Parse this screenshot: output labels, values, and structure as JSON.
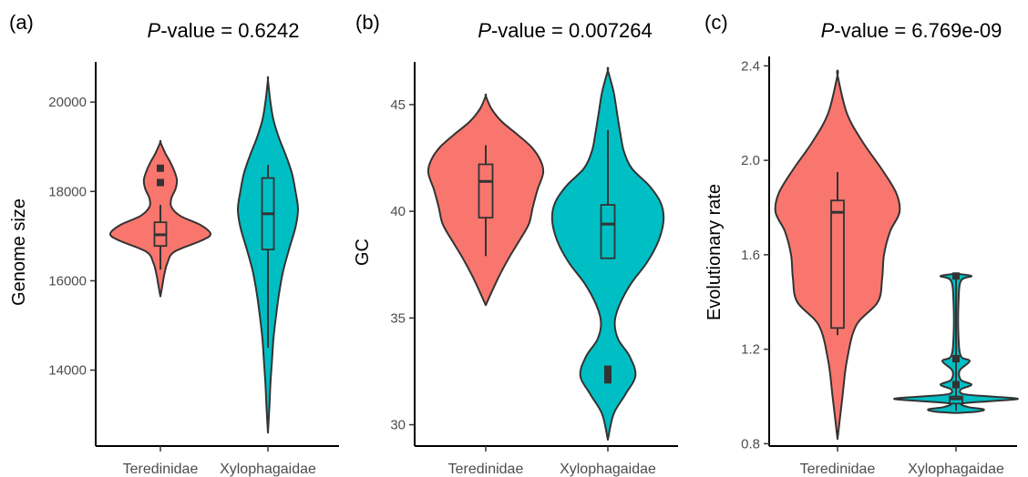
{
  "colors": {
    "teredinidae": "#F8766D",
    "xylophagaidae": "#00BFC4",
    "outline": "#333333"
  },
  "chart_data": [
    {
      "type": "violin",
      "panel_label": "(a)",
      "title_italic": "P",
      "title_rest": "-value = 0.6242",
      "ylabel": "Genome size",
      "ylim": [
        12300,
        20900
      ],
      "yticks": [
        14000,
        16000,
        18000,
        20000
      ],
      "ytick_labels": [
        "14000",
        "16000",
        "18000",
        "20000"
      ],
      "categories": [
        "Teredinidae",
        "Xylophagaidae"
      ],
      "groups": [
        {
          "name": "Teredinidae",
          "color": "#F8766D",
          "violin": [
            [
              15650,
              0.0
            ],
            [
              15900,
              0.04
            ],
            [
              16150,
              0.08
            ],
            [
              16400,
              0.14
            ],
            [
              16650,
              0.28
            ],
            [
              16900,
              0.82
            ],
            [
              17050,
              1.0
            ],
            [
              17250,
              0.8
            ],
            [
              17450,
              0.4
            ],
            [
              17650,
              0.22
            ],
            [
              17850,
              0.22
            ],
            [
              18050,
              0.3
            ],
            [
              18250,
              0.33
            ],
            [
              18450,
              0.28
            ],
            [
              18650,
              0.2
            ],
            [
              18850,
              0.1
            ],
            [
              19100,
              0.0
            ]
          ],
          "box": {
            "q1": 16780,
            "median": 17030,
            "q3": 17310,
            "wlo": 16250,
            "whi": 17700
          },
          "outliers": [
            18200,
            18520
          ]
        },
        {
          "name": "Xylophagaidae",
          "color": "#00BFC4",
          "violin": [
            [
              12600,
              0.0
            ],
            [
              13200,
              0.03
            ],
            [
              13700,
              0.05
            ],
            [
              14200,
              0.08
            ],
            [
              14700,
              0.11
            ],
            [
              15200,
              0.16
            ],
            [
              15700,
              0.22
            ],
            [
              16200,
              0.3
            ],
            [
              16700,
              0.42
            ],
            [
              17200,
              0.55
            ],
            [
              17600,
              0.6
            ],
            [
              18000,
              0.55
            ],
            [
              18400,
              0.48
            ],
            [
              18800,
              0.36
            ],
            [
              19200,
              0.22
            ],
            [
              19600,
              0.11
            ],
            [
              20000,
              0.05
            ],
            [
              20500,
              0.0
            ]
          ],
          "box": {
            "q1": 16700,
            "median": 17500,
            "q3": 18300,
            "wlo": 14500,
            "whi": 18600
          },
          "outliers": []
        }
      ]
    },
    {
      "type": "violin",
      "panel_label": "(b)",
      "title_italic": "P",
      "title_rest": "-value = 0.007264",
      "ylabel": "GC",
      "ylim": [
        29,
        47
      ],
      "yticks": [
        30,
        35,
        40,
        45
      ],
      "ytick_labels": [
        "30",
        "35",
        "40",
        "45"
      ],
      "categories": [
        "Teredinidae",
        "Xylophagaidae"
      ],
      "groups": [
        {
          "name": "Teredinidae",
          "color": "#F8766D",
          "violin": [
            [
              35.6,
              0.0
            ],
            [
              36.2,
              0.1
            ],
            [
              37.0,
              0.24
            ],
            [
              37.8,
              0.4
            ],
            [
              38.6,
              0.58
            ],
            [
              39.4,
              0.75
            ],
            [
              40.2,
              0.82
            ],
            [
              41.0,
              0.9
            ],
            [
              41.8,
              1.0
            ],
            [
              42.4,
              0.95
            ],
            [
              43.0,
              0.8
            ],
            [
              43.6,
              0.55
            ],
            [
              44.2,
              0.28
            ],
            [
              44.8,
              0.1
            ],
            [
              45.4,
              0.0
            ]
          ],
          "box": {
            "q1": 39.7,
            "median": 41.4,
            "q3": 42.2,
            "wlo": 37.9,
            "whi": 43.1
          },
          "outliers": []
        },
        {
          "name": "Xylophagaidae",
          "color": "#00BFC4",
          "violin": [
            [
              29.3,
              0.0
            ],
            [
              30.5,
              0.1
            ],
            [
              31.4,
              0.3
            ],
            [
              32.3,
              0.48
            ],
            [
              33.2,
              0.38
            ],
            [
              34.0,
              0.18
            ],
            [
              34.8,
              0.12
            ],
            [
              35.6,
              0.2
            ],
            [
              36.6,
              0.4
            ],
            [
              37.6,
              0.68
            ],
            [
              38.6,
              0.88
            ],
            [
              39.6,
              0.97
            ],
            [
              40.4,
              0.92
            ],
            [
              41.2,
              0.72
            ],
            [
              42.0,
              0.42
            ],
            [
              42.8,
              0.28
            ],
            [
              43.6,
              0.22
            ],
            [
              44.6,
              0.16
            ],
            [
              45.6,
              0.1
            ],
            [
              46.6,
              0.0
            ]
          ],
          "box": {
            "q1": 37.8,
            "median": 39.4,
            "q3": 40.3,
            "wlo": 37.8,
            "whi": 43.8
          },
          "outliers": [
            32.1,
            32.35,
            32.6
          ]
        }
      ]
    },
    {
      "type": "violin",
      "panel_label": "(c)",
      "title_italic": "P",
      "title_rest": "-value = 6.769e-09",
      "ylabel": "Evolutionary rate",
      "ylim": [
        0.79,
        2.44
      ],
      "yticks": [
        0.8,
        1.2,
        1.6,
        2.0,
        2.4
      ],
      "ytick_labels": [
        "0.8",
        "1.2",
        "1.6",
        "2.0",
        "2.4"
      ],
      "categories": [
        "Teredinidae",
        "Xylophagaidae"
      ],
      "groups": [
        {
          "name": "Teredinidae",
          "color": "#F8766D",
          "violin": [
            [
              0.82,
              0.0
            ],
            [
              1.0,
              0.08
            ],
            [
              1.15,
              0.15
            ],
            [
              1.3,
              0.3
            ],
            [
              1.4,
              0.65
            ],
            [
              1.5,
              0.72
            ],
            [
              1.6,
              0.75
            ],
            [
              1.7,
              0.85
            ],
            [
              1.78,
              1.0
            ],
            [
              1.86,
              0.95
            ],
            [
              1.96,
              0.72
            ],
            [
              2.08,
              0.4
            ],
            [
              2.2,
              0.15
            ],
            [
              2.36,
              0.0
            ]
          ],
          "box": {
            "q1": 1.29,
            "median": 1.78,
            "q3": 1.83,
            "wlo": 1.26,
            "whi": 1.95
          },
          "outliers": []
        },
        {
          "name": "Xylophagaidae",
          "color": "#00BFC4",
          "violin": [
            [
              0.93,
              0.0
            ],
            [
              0.935,
              0.32
            ],
            [
              0.945,
              0.45
            ],
            [
              0.955,
              0.2
            ],
            [
              0.97,
              0.1
            ],
            [
              0.98,
              0.55
            ],
            [
              0.99,
              1.0
            ],
            [
              1.0,
              0.55
            ],
            [
              1.01,
              0.12
            ],
            [
              1.03,
              0.08
            ],
            [
              1.05,
              0.25
            ],
            [
              1.07,
              0.08
            ],
            [
              1.11,
              0.06
            ],
            [
              1.15,
              0.22
            ],
            [
              1.17,
              0.08
            ],
            [
              1.25,
              0.04
            ],
            [
              1.4,
              0.04
            ],
            [
              1.49,
              0.08
            ],
            [
              1.51,
              0.25
            ],
            [
              1.52,
              0.0
            ]
          ],
          "box": {
            "q1": 0.97,
            "median": 0.99,
            "q3": 1.0,
            "wlo": 0.94,
            "whi": 1.51
          },
          "outliers": [
            1.05,
            1.16,
            1.51
          ]
        }
      ]
    }
  ]
}
